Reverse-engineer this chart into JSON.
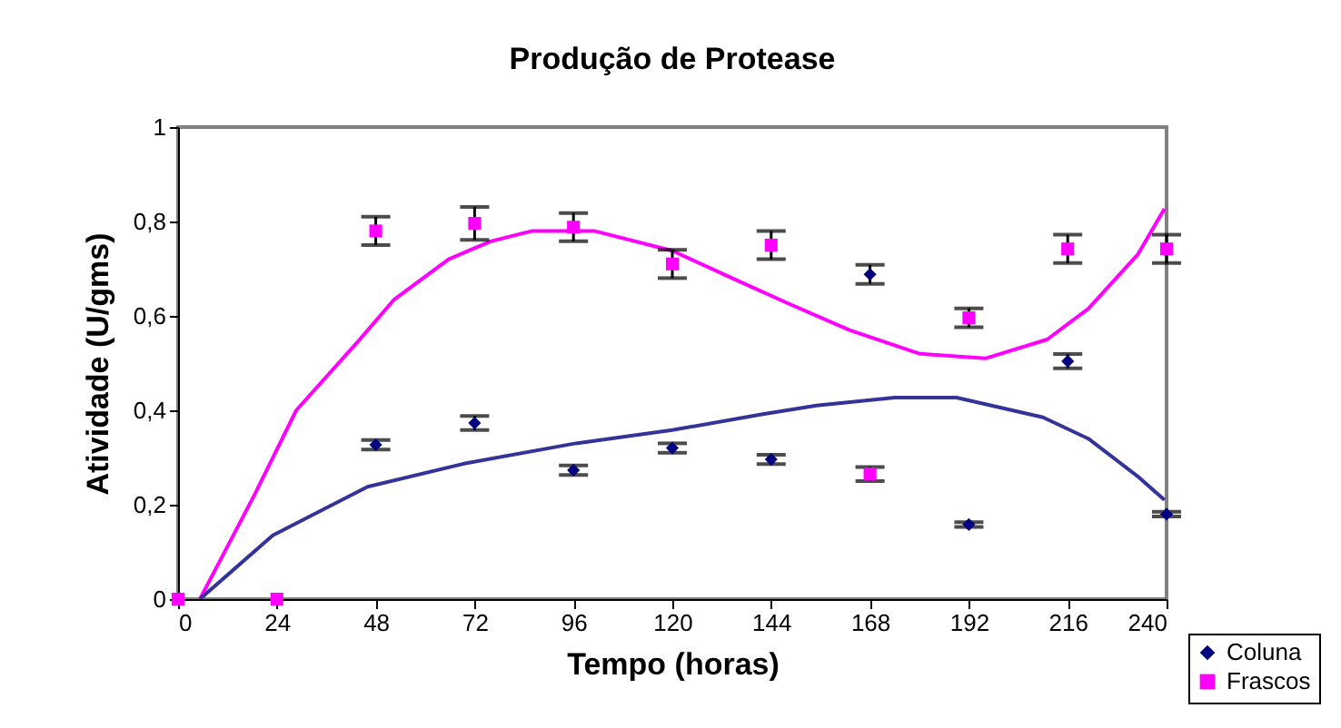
{
  "chart_data": {
    "type": "scatter",
    "title": "Produção de  Protease",
    "xlabel": "Tempo (horas)",
    "ylabel": "Atividade (U/gms)",
    "x": [
      0,
      24,
      48,
      72,
      96,
      120,
      144,
      168,
      192,
      216,
      240
    ],
    "series": [
      {
        "name": "Coluna",
        "color": "#000080",
        "marker": "diamond",
        "values": [
          null,
          null,
          0.327,
          0.373,
          0.273,
          0.32,
          0.296,
          0.688,
          0.158,
          0.504,
          0.18
        ],
        "errors": [
          null,
          null,
          0.01,
          0.015,
          0.01,
          0.01,
          0.01,
          0.02,
          0.005,
          0.015,
          0.005
        ]
      },
      {
        "name": "Frascos",
        "color": "#ff00ff",
        "marker": "square",
        "values": [
          0,
          0,
          0.78,
          0.796,
          0.788,
          0.71,
          0.75,
          0.265,
          0.596,
          0.742,
          0.742
        ],
        "errors": [
          null,
          null,
          0.03,
          0.035,
          0.03,
          0.03,
          0.03,
          0.015,
          0.02,
          0.03,
          0.03
        ]
      },
      {
        "type": "line",
        "color": "#ff00ff",
        "x": [
          5.3,
          18.5,
          28.7,
          43.7,
          52.5,
          65.7,
          75.9,
          86,
          101,
          120,
          134.5,
          148,
          163,
          180,
          196,
          211,
          221,
          233,
          239.5
        ],
        "values": [
          0,
          0.22,
          0.4,
          0.546,
          0.635,
          0.72,
          0.758,
          0.78,
          0.78,
          0.738,
          0.68,
          0.627,
          0.57,
          0.52,
          0.51,
          0.55,
          0.615,
          0.73,
          0.827
        ]
      },
      {
        "type": "line",
        "color": "#333399",
        "x": [
          5.3,
          23,
          46,
          70,
          96.6,
          120,
          142,
          155,
          174,
          189,
          210,
          221,
          233,
          239.5
        ],
        "values": [
          0,
          0.135,
          0.238,
          0.288,
          0.33,
          0.358,
          0.392,
          0.41,
          0.427,
          0.427,
          0.385,
          0.34,
          0.26,
          0.21
        ]
      }
    ],
    "xlim": [
      0,
      240
    ],
    "xticks": [
      0,
      24,
      48,
      72,
      96,
      120,
      144,
      168,
      192,
      216,
      240
    ],
    "ylim": [
      0,
      1
    ],
    "yticks": [
      0,
      {
        "value": 0.2,
        "label": "0,2"
      },
      {
        "value": 0.4,
        "label": "0,4"
      },
      {
        "value": 0.6,
        "label": "0,6"
      },
      {
        "value": 0.8,
        "label": "0,8"
      },
      1
    ],
    "grid": false,
    "legend": "bottom right"
  }
}
